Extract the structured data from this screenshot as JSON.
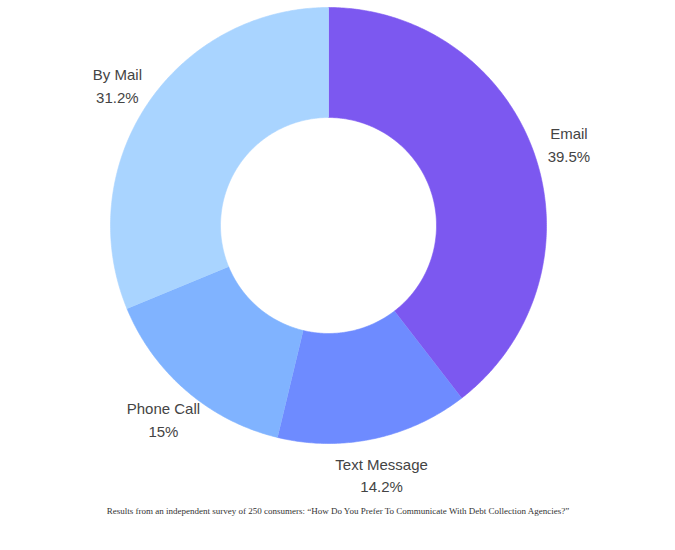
{
  "chart_data": {
    "type": "donut",
    "categories": [
      "Email",
      "Text Message",
      "Phone Call",
      "By Mail"
    ],
    "values": [
      39.5,
      14.2,
      15,
      31.2
    ],
    "value_labels": [
      "39.5%",
      "14.2%",
      "15%",
      "31.2%"
    ],
    "colors": [
      "#7c58f0",
      "#6e8bff",
      "#80b3ff",
      "#a9d4ff"
    ],
    "data_labels": true,
    "caption": "Results from an independent survey of 250 consumers: “How Do You Prefer To Communicate With Debt Collection Agencies?”"
  }
}
